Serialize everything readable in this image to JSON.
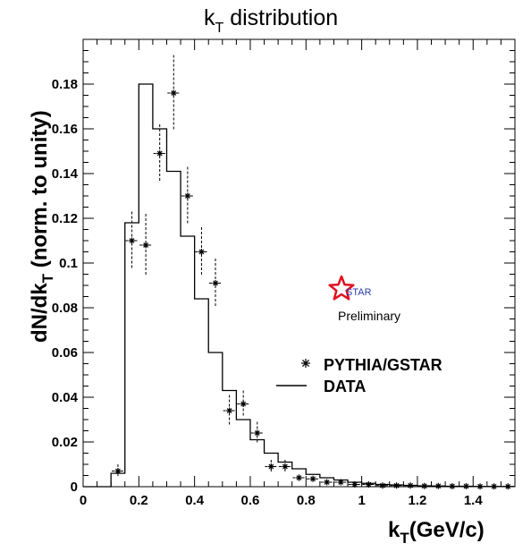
{
  "chart_data": {
    "type": "line",
    "title_main": "k",
    "title_sub": "T",
    "title_rest": " distribution",
    "ylabel_main": "dN/dk",
    "ylabel_sub": "T",
    "ylabel_rest": " (norm. to unity)",
    "xlabel_main": "k",
    "xlabel_sub": "T",
    "xlabel_rest": "(GeV/c)",
    "xlim": [
      0,
      1.55
    ],
    "ylim": [
      0,
      0.2
    ],
    "x_ticks": [
      "0",
      "0.2",
      "0.4",
      "0.6",
      "0.8",
      "1",
      "1.2",
      "1.4"
    ],
    "y_ticks": [
      "0",
      "0.02",
      "0.04",
      "0.06",
      "0.08",
      "0.1",
      "0.12",
      "0.14",
      "0.16",
      "0.18"
    ],
    "grid": false,
    "legend_position": "center-right",
    "series": [
      {
        "name": "DATA",
        "style": "histogram-step",
        "bin_edges": [
          0.0,
          0.05,
          0.1,
          0.15,
          0.2,
          0.25,
          0.3,
          0.35,
          0.4,
          0.45,
          0.5,
          0.55,
          0.6,
          0.65,
          0.7,
          0.75,
          0.8,
          0.85,
          0.9,
          0.95,
          1.0,
          1.05,
          1.1,
          1.15,
          1.2,
          1.25,
          1.3,
          1.35,
          1.4,
          1.45,
          1.5,
          1.55
        ],
        "values": [
          0.0,
          0.0,
          0.006,
          0.118,
          0.18,
          0.16,
          0.141,
          0.112,
          0.084,
          0.06,
          0.043,
          0.03,
          0.021,
          0.015,
          0.011,
          0.008,
          0.0055,
          0.004,
          0.003,
          0.002,
          0.0015,
          0.001,
          0.0008,
          0.0006,
          0.0004,
          0.0003,
          0.0002,
          0.0002,
          0.0001,
          0.0001,
          0.0001
        ]
      },
      {
        "name": "PYTHIA/GSTAR",
        "style": "markers-with-errors",
        "x": [
          0.125,
          0.175,
          0.225,
          0.275,
          0.325,
          0.375,
          0.425,
          0.475,
          0.525,
          0.575,
          0.625,
          0.675,
          0.725,
          0.775,
          0.825,
          0.875,
          0.925,
          0.975,
          1.025,
          1.075,
          1.125,
          1.175,
          1.225,
          1.275,
          1.325,
          1.375,
          1.425,
          1.475,
          1.525
        ],
        "y": [
          0.007,
          0.11,
          0.108,
          0.149,
          0.176,
          0.13,
          0.105,
          0.091,
          0.034,
          0.037,
          0.024,
          0.009,
          0.009,
          0.004,
          0.0035,
          0.002,
          0.002,
          0.001,
          0.001,
          0.0005,
          0.0005,
          0.0005,
          0.0003,
          0.0003,
          0.0002,
          0.0002,
          0.0001,
          0.0001,
          0.0001
        ],
        "yerr": [
          0.003,
          0.013,
          0.014,
          0.013,
          0.017,
          0.013,
          0.011,
          0.011,
          0.007,
          0.006,
          0.005,
          0.003,
          0.003,
          0.0015,
          0.0012,
          0.0008,
          0.0008,
          0.0005,
          0.0005,
          0.0002,
          0.0002,
          0.0002,
          0.0001,
          0.0001,
          0.0001,
          0.0001,
          0.0001,
          0.0001,
          0.0001
        ]
      }
    ],
    "legend": [
      {
        "label": "PYTHIA/GSTAR",
        "symbol": "asterisk"
      },
      {
        "label": "DATA",
        "symbol": "line"
      }
    ],
    "annotation": {
      "logo_text": "STAR",
      "caption": "Preliminary"
    }
  },
  "colors": {
    "axis": "#000000",
    "logo_star": "#e01020",
    "logo_text": "#2a3aa8"
  }
}
